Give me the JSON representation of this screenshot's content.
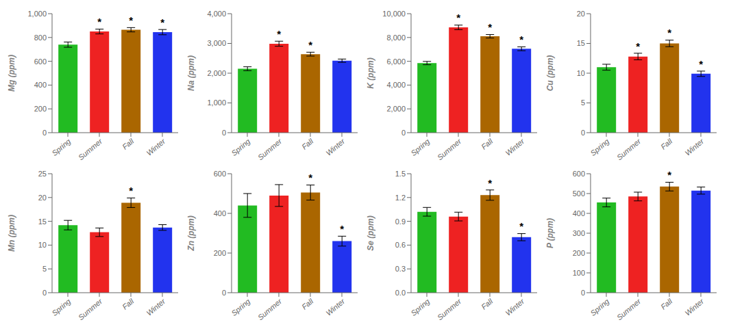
{
  "chart_data": [
    {
      "type": "bar",
      "y_label": "Mg (ppm)",
      "categories": [
        "Spring",
        "Summer",
        "Fall",
        "Winter"
      ],
      "values": [
        740,
        850,
        865,
        845
      ],
      "errors": [
        22,
        20,
        18,
        22
      ],
      "colors": [
        "#22bb22",
        "#ee2222",
        "#aa6600",
        "#2233ee"
      ],
      "ylim": [
        0,
        1000
      ],
      "yticks": [
        0,
        200,
        400,
        600,
        800,
        {
          "value": 1000,
          "label": "1,000"
        }
      ],
      "significance": [
        false,
        true,
        true,
        true
      ],
      "annotation": "*",
      "grid": false
    },
    {
      "type": "bar",
      "y_label": "Na (ppm)",
      "categories": [
        "Spring",
        "Summer",
        "Fall",
        "Winter"
      ],
      "values": [
        2150,
        2990,
        2640,
        2420
      ],
      "errors": [
        65,
        85,
        65,
        55
      ],
      "colors": [
        "#22bb22",
        "#ee2222",
        "#aa6600",
        "#2233ee"
      ],
      "ylim": [
        0,
        4000
      ],
      "yticks": [
        0,
        {
          "value": 1000,
          "label": "1,000"
        },
        {
          "value": 2000,
          "label": "2,000"
        },
        {
          "value": 3000,
          "label": "3,000"
        },
        {
          "value": 4000,
          "label": "4,000"
        }
      ],
      "significance": [
        false,
        true,
        true,
        false
      ],
      "annotation": "*",
      "grid": false
    },
    {
      "type": "bar",
      "y_label": "K (ppm)",
      "categories": [
        "Spring",
        "Summer",
        "Fall",
        "Winter"
      ],
      "values": [
        5850,
        8850,
        8100,
        7050
      ],
      "errors": [
        140,
        190,
        145,
        160
      ],
      "colors": [
        "#22bb22",
        "#ee2222",
        "#aa6600",
        "#2233ee"
      ],
      "ylim": [
        0,
        10000
      ],
      "yticks": [
        0,
        {
          "value": 2000,
          "label": "2,000"
        },
        {
          "value": 4000,
          "label": "4,000"
        },
        {
          "value": 6000,
          "label": "6,000"
        },
        {
          "value": 8000,
          "label": "8,000"
        },
        {
          "value": 10000,
          "label": "10,000"
        }
      ],
      "significance": [
        false,
        true,
        true,
        true
      ],
      "annotation": "*",
      "grid": false
    },
    {
      "type": "bar",
      "y_label": "Cu (ppm)",
      "categories": [
        "Spring",
        "Summer",
        "Fall",
        "Winter"
      ],
      "values": [
        11.0,
        12.8,
        15.0,
        9.9
      ],
      "errors": [
        0.5,
        0.55,
        0.55,
        0.45
      ],
      "colors": [
        "#22bb22",
        "#ee2222",
        "#aa6600",
        "#2233ee"
      ],
      "ylim": [
        0,
        20
      ],
      "yticks": [
        0,
        5,
        10,
        15,
        20
      ],
      "significance": [
        false,
        true,
        true,
        true
      ],
      "annotation": "*",
      "grid": false
    },
    {
      "type": "bar",
      "y_label": "Mn (ppm)",
      "categories": [
        "Spring",
        "Summer",
        "Fall",
        "Winter"
      ],
      "values": [
        14.2,
        12.7,
        18.9,
        13.7
      ],
      "errors": [
        1.0,
        0.9,
        1.0,
        0.6
      ],
      "colors": [
        "#22bb22",
        "#ee2222",
        "#aa6600",
        "#2233ee"
      ],
      "ylim": [
        0,
        25
      ],
      "yticks": [
        0,
        5,
        10,
        15,
        20,
        25
      ],
      "significance": [
        false,
        false,
        true,
        false
      ],
      "annotation": "*",
      "grid": false
    },
    {
      "type": "bar",
      "y_label": "Zn (ppm)",
      "categories": [
        "Spring",
        "Summer",
        "Fall",
        "Winter"
      ],
      "values": [
        440,
        490,
        505,
        260
      ],
      "errors": [
        60,
        55,
        38,
        25
      ],
      "colors": [
        "#22bb22",
        "#ee2222",
        "#aa6600",
        "#2233ee"
      ],
      "ylim": [
        0,
        600
      ],
      "yticks": [
        0,
        200,
        400,
        600
      ],
      "significance": [
        false,
        false,
        true,
        true
      ],
      "annotation": "*",
      "grid": false
    },
    {
      "type": "bar",
      "y_label": "Se (ppm)",
      "categories": [
        "Spring",
        "Summer",
        "Fall",
        "Winter"
      ],
      "values": [
        1.02,
        0.96,
        1.23,
        0.7
      ],
      "errors": [
        0.055,
        0.055,
        0.065,
        0.045
      ],
      "colors": [
        "#22bb22",
        "#ee2222",
        "#aa6600",
        "#2233ee"
      ],
      "ylim": [
        0.0,
        1.5
      ],
      "yticks": [
        {
          "value": 0.0,
          "label": "0.0"
        },
        0.3,
        0.6,
        0.9,
        1.2,
        1.5
      ],
      "significance": [
        false,
        false,
        true,
        true
      ],
      "annotation": "*",
      "grid": false
    },
    {
      "type": "bar",
      "y_label": "P (ppm)",
      "categories": [
        "Spring",
        "Summer",
        "Fall",
        "Winter"
      ],
      "values": [
        455,
        485,
        535,
        515
      ],
      "errors": [
        22,
        22,
        22,
        18
      ],
      "colors": [
        "#22bb22",
        "#ee2222",
        "#aa6600",
        "#2233ee"
      ],
      "ylim": [
        0,
        600
      ],
      "yticks": [
        0,
        100,
        200,
        300,
        400,
        500,
        600
      ],
      "significance": [
        false,
        false,
        true,
        false
      ],
      "annotation": "*",
      "grid": false
    }
  ]
}
